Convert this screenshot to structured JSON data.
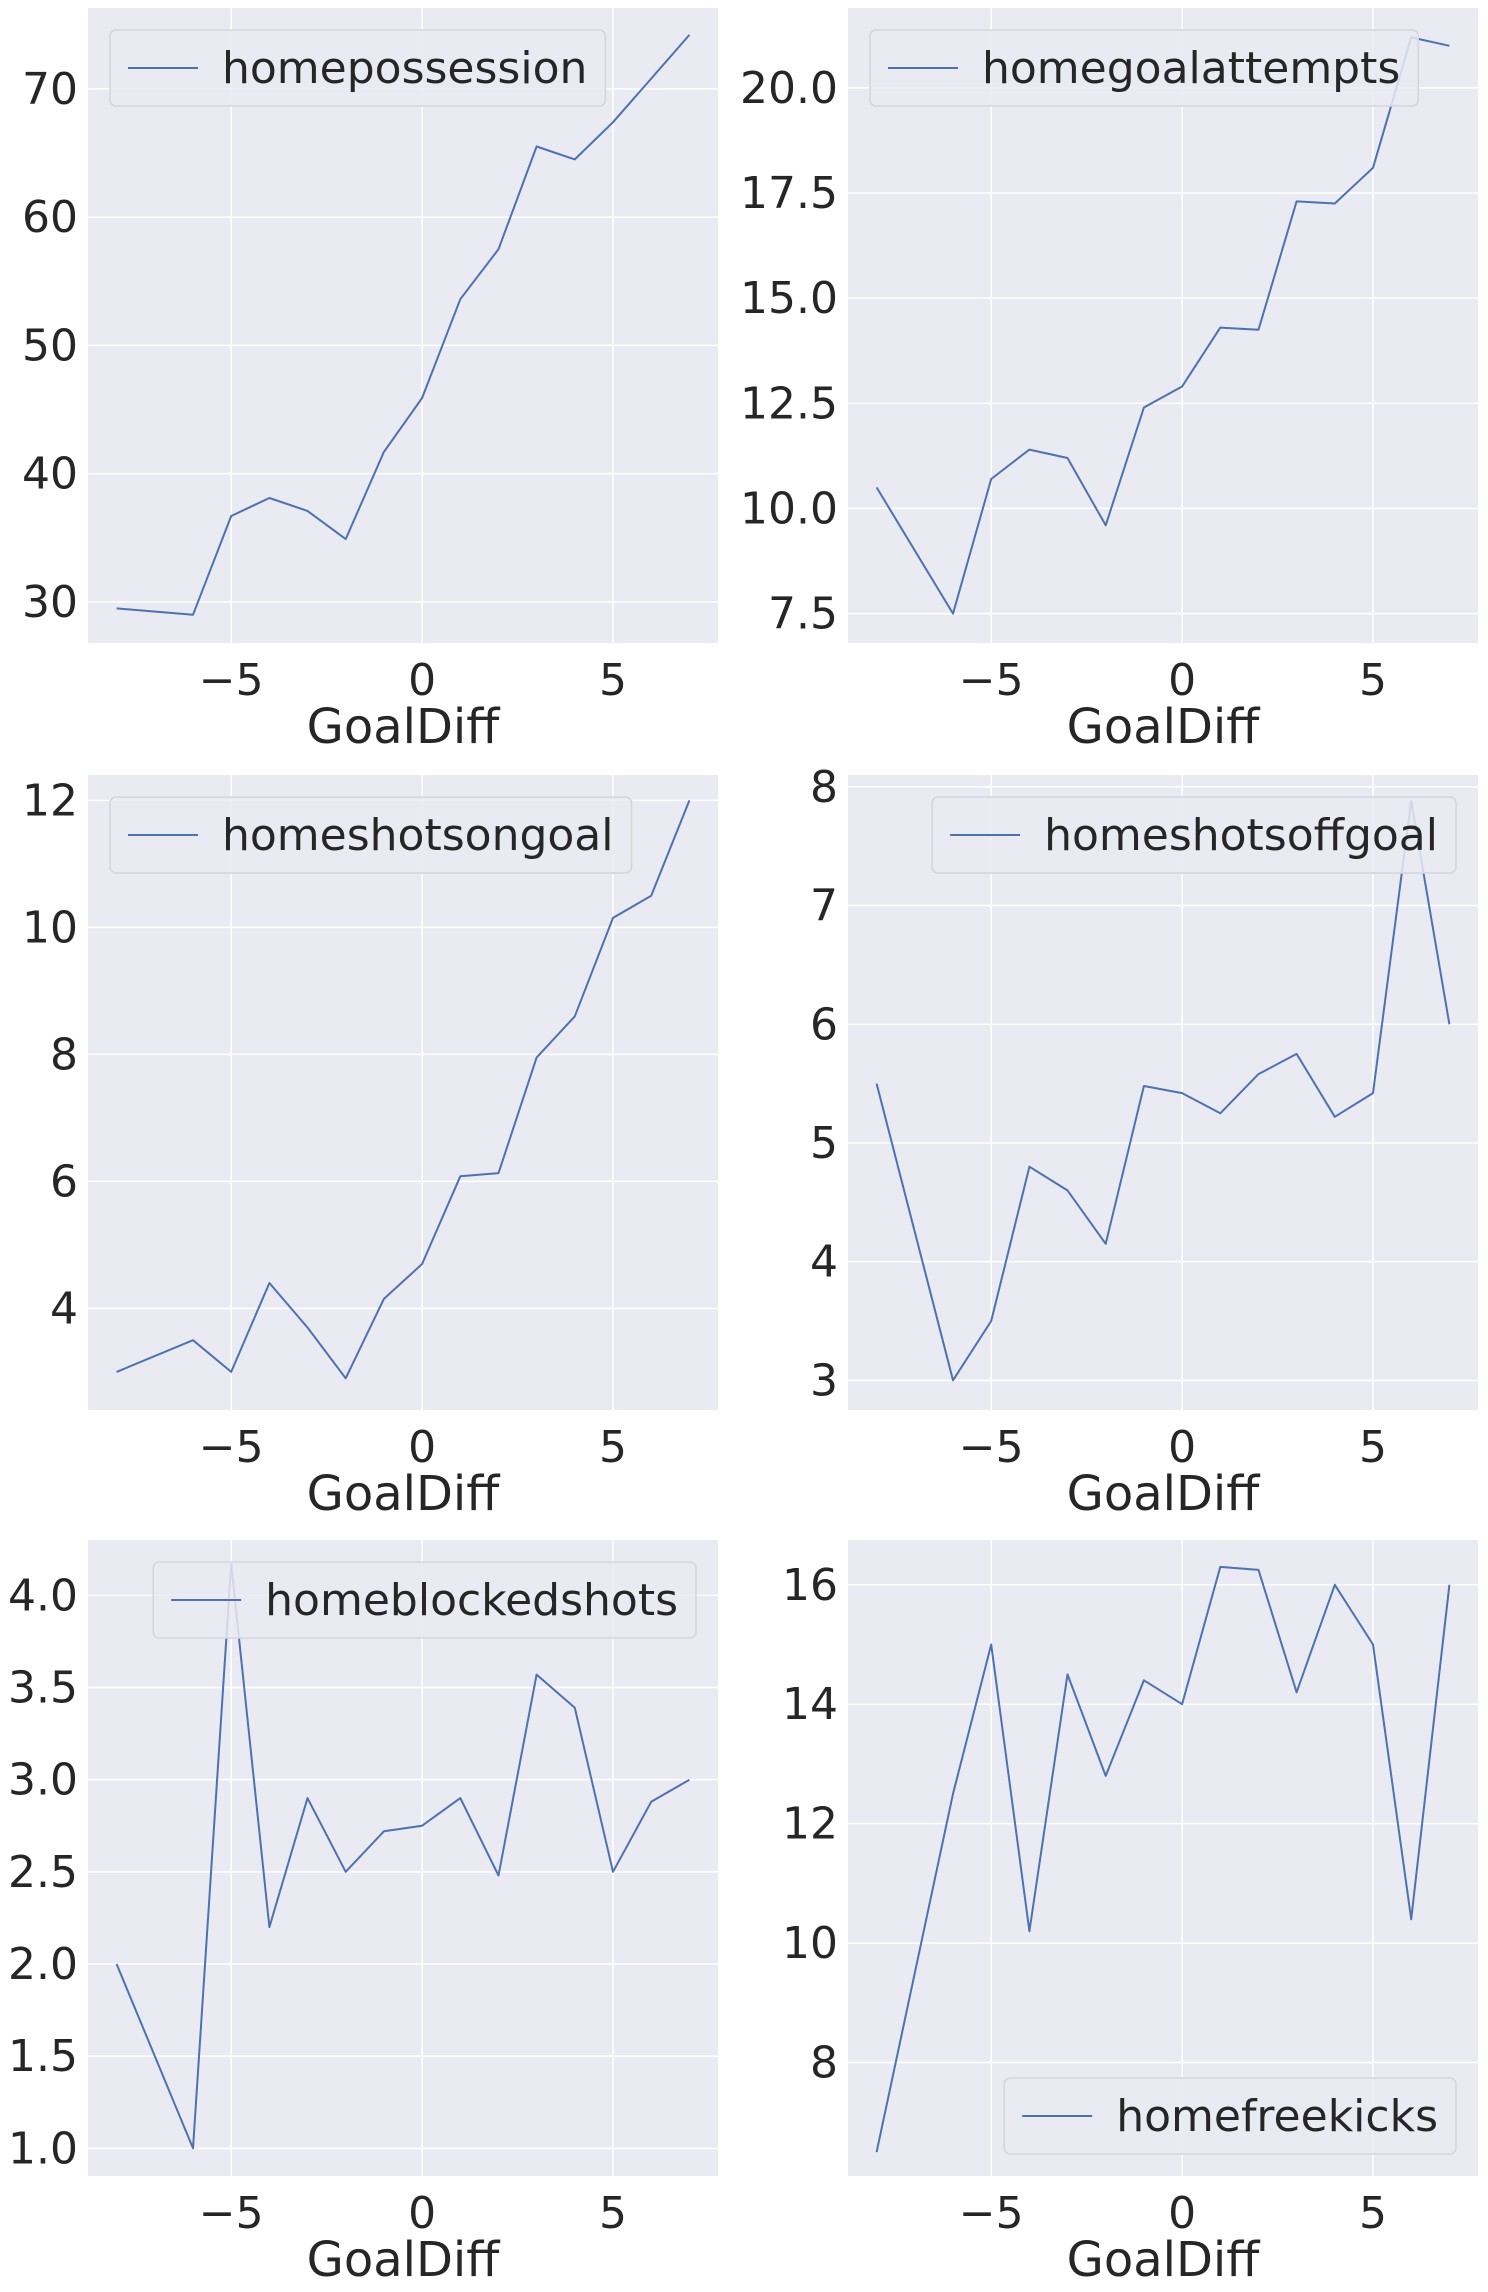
{
  "style": {
    "panel_background": "#eaeaf2",
    "grid_color": "#ffffff",
    "line_color": "#4c72b0",
    "text_color": "#262626",
    "legend_border": "#d5d5dc"
  },
  "chart_data": [
    {
      "type": "line",
      "xlabel": "GoalDiff",
      "ylabel": "",
      "grid": true,
      "legend_position": "upper-left",
      "xlim": [
        -8.75,
        7.75
      ],
      "ylim": [
        26.8,
        76.3
      ],
      "xticks": [
        -5,
        0,
        5
      ],
      "xtick_labels": [
        "−5",
        "0",
        "5"
      ],
      "yticks": [
        30,
        40,
        50,
        60,
        70
      ],
      "ytick_labels": [
        "30",
        "40",
        "50",
        "60",
        "70"
      ],
      "series": [
        {
          "name": "homepossession",
          "x": [
            -8,
            -6,
            -5,
            -4,
            -3,
            -2,
            -1,
            0,
            1,
            2,
            3,
            4,
            5,
            6,
            7
          ],
          "y": [
            29.5,
            29.0,
            36.7,
            38.1,
            37.1,
            34.9,
            41.7,
            45.9,
            53.6,
            57.5,
            65.5,
            64.5,
            67.4,
            70.8,
            74.2
          ]
        }
      ]
    },
    {
      "type": "line",
      "xlabel": "GoalDiff",
      "ylabel": "",
      "grid": true,
      "legend_position": "upper-left",
      "xlim": [
        -8.75,
        7.75
      ],
      "ylim": [
        6.8,
        21.9
      ],
      "xticks": [
        -5,
        0,
        5
      ],
      "xtick_labels": [
        "−5",
        "0",
        "5"
      ],
      "yticks": [
        7.5,
        10.0,
        12.5,
        15.0,
        17.5,
        20.0
      ],
      "ytick_labels": [
        "7.5",
        "10.0",
        "12.5",
        "15.0",
        "17.5",
        "20.0"
      ],
      "series": [
        {
          "name": "homegoalattempts",
          "x": [
            -8,
            -6,
            -5,
            -4,
            -3,
            -2,
            -1,
            0,
            1,
            2,
            3,
            4,
            5,
            6,
            7
          ],
          "y": [
            10.5,
            7.5,
            10.7,
            11.4,
            11.2,
            9.6,
            12.4,
            12.9,
            14.3,
            14.25,
            17.3,
            17.25,
            18.1,
            21.2,
            21.0
          ]
        }
      ]
    },
    {
      "type": "line",
      "xlabel": "GoalDiff",
      "ylabel": "",
      "grid": true,
      "legend_position": "upper-left",
      "xlim": [
        -8.75,
        7.75
      ],
      "ylim": [
        2.4,
        12.4
      ],
      "xticks": [
        -5,
        0,
        5
      ],
      "xtick_labels": [
        "−5",
        "0",
        "5"
      ],
      "yticks": [
        4,
        6,
        8,
        10,
        12
      ],
      "ytick_labels": [
        "4",
        "6",
        "8",
        "10",
        "12"
      ],
      "series": [
        {
          "name": "homeshotsongoal",
          "x": [
            -8,
            -6,
            -5,
            -4,
            -3,
            -2,
            -1,
            0,
            1,
            2,
            3,
            4,
            5,
            6,
            7
          ],
          "y": [
            3.0,
            3.5,
            3.0,
            4.4,
            3.7,
            2.9,
            4.15,
            4.7,
            6.08,
            6.13,
            7.95,
            8.6,
            10.15,
            10.5,
            12.0
          ]
        }
      ]
    },
    {
      "type": "line",
      "xlabel": "GoalDiff",
      "ylabel": "",
      "grid": true,
      "legend_position": "upper-right",
      "xlim": [
        -8.75,
        7.75
      ],
      "ylim": [
        2.75,
        8.1
      ],
      "xticks": [
        -5,
        0,
        5
      ],
      "xtick_labels": [
        "−5",
        "0",
        "5"
      ],
      "yticks": [
        3,
        4,
        5,
        6,
        7,
        8
      ],
      "ytick_labels": [
        "3",
        "4",
        "5",
        "6",
        "7",
        "8"
      ],
      "series": [
        {
          "name": "homeshotsoffgoal",
          "x": [
            -8,
            -6,
            -5,
            -4,
            -3,
            -2,
            -1,
            0,
            1,
            2,
            3,
            4,
            5,
            6,
            7
          ],
          "y": [
            5.5,
            3.0,
            3.5,
            4.8,
            4.6,
            4.15,
            5.48,
            5.42,
            5.25,
            5.58,
            5.75,
            5.22,
            5.42,
            7.88,
            6.0
          ]
        }
      ]
    },
    {
      "type": "line",
      "xlabel": "GoalDiff",
      "ylabel": "",
      "grid": true,
      "legend_position": "upper-right",
      "xlim": [
        -8.75,
        7.75
      ],
      "ylim": [
        0.85,
        4.3
      ],
      "xticks": [
        -5,
        0,
        5
      ],
      "xtick_labels": [
        "−5",
        "0",
        "5"
      ],
      "yticks": [
        1.0,
        1.5,
        2.0,
        2.5,
        3.0,
        3.5,
        4.0
      ],
      "ytick_labels": [
        "1.0",
        "1.5",
        "2.0",
        "2.5",
        "3.0",
        "3.5",
        "4.0"
      ],
      "series": [
        {
          "name": "homeblockedshots",
          "x": [
            -8,
            -6,
            -5,
            -4,
            -3,
            -2,
            -1,
            0,
            1,
            2,
            3,
            4,
            5,
            6,
            7
          ],
          "y": [
            2.0,
            1.0,
            4.17,
            2.2,
            2.9,
            2.5,
            2.72,
            2.75,
            2.9,
            2.48,
            3.57,
            3.39,
            2.5,
            2.88,
            3.0
          ]
        }
      ]
    },
    {
      "type": "line",
      "xlabel": "GoalDiff",
      "ylabel": "",
      "grid": true,
      "legend_position": "lower-right",
      "xlim": [
        -8.75,
        7.75
      ],
      "ylim": [
        6.1,
        16.75
      ],
      "xticks": [
        -5,
        0,
        5
      ],
      "xtick_labels": [
        "−5",
        "0",
        "5"
      ],
      "yticks": [
        8,
        10,
        12,
        14,
        16
      ],
      "ytick_labels": [
        "8",
        "10",
        "12",
        "14",
        "16"
      ],
      "series": [
        {
          "name": "homefreekicks",
          "x": [
            -8,
            -6,
            -5,
            -4,
            -3,
            -2,
            -1,
            0,
            1,
            2,
            3,
            4,
            5,
            6,
            7
          ],
          "y": [
            6.5,
            12.5,
            15.0,
            10.2,
            14.5,
            12.8,
            14.4,
            14.0,
            16.3,
            16.25,
            14.2,
            16.0,
            15.0,
            10.4,
            16.0
          ]
        }
      ]
    }
  ]
}
